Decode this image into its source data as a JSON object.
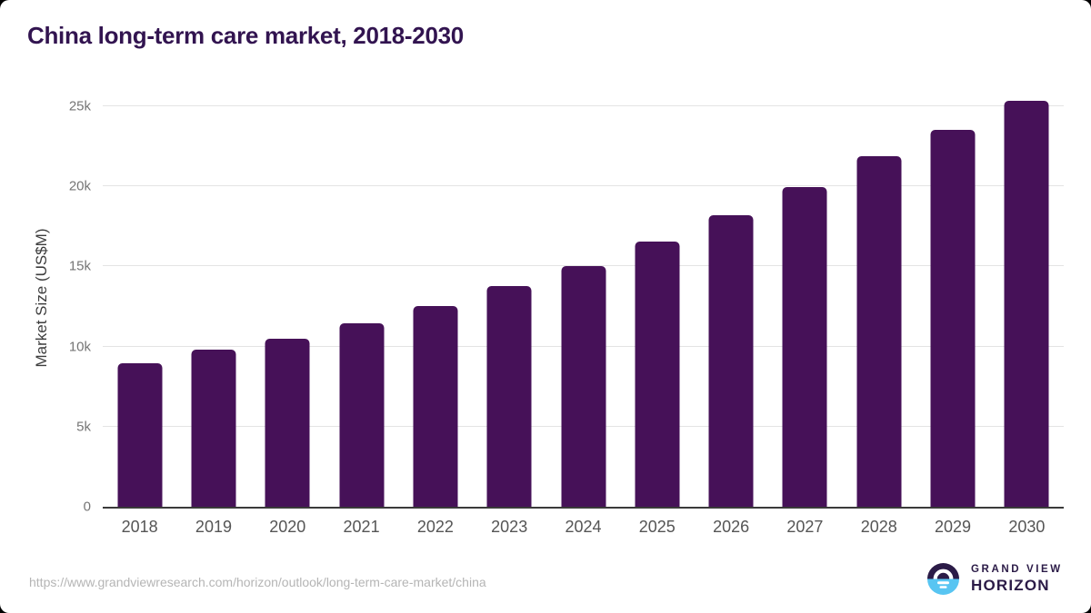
{
  "title": "China long-term care market, 2018-2030",
  "footer": {
    "source_url": "https://www.grandviewresearch.com/horizon/outlook/long-term-care-market/china",
    "logo": {
      "line1": "GRAND VIEW",
      "line2": "HORIZON"
    }
  },
  "colors": {
    "bar": "#461158",
    "title_text": "#321450",
    "axis_line": "#3a3a3a",
    "gridline": "#e4e4e4",
    "y_tick_text": "#757575",
    "x_tick_text": "#555555",
    "url_text": "#b5b5b5",
    "logo_dark": "#2b1b47",
    "logo_blue": "#58c5f2"
  },
  "chart_data": {
    "type": "bar",
    "title": "China long-term care market, 2018-2030",
    "xlabel": "",
    "ylabel": "Market Size (US$M)",
    "categories": [
      "2018",
      "2019",
      "2020",
      "2021",
      "2022",
      "2023",
      "2024",
      "2025",
      "2026",
      "2027",
      "2028",
      "2029",
      "2030"
    ],
    "values": [
      8950,
      9800,
      10500,
      11450,
      12550,
      13750,
      15050,
      16550,
      18200,
      19950,
      21900,
      23550,
      25350
    ],
    "ylim": [
      0,
      25000
    ],
    "yticks": [
      {
        "value": 0,
        "label": "0"
      },
      {
        "value": 5000,
        "label": "5k"
      },
      {
        "value": 10000,
        "label": "10k"
      },
      {
        "value": 15000,
        "label": "15k"
      },
      {
        "value": 20000,
        "label": "20k"
      },
      {
        "value": 25000,
        "label": "25k"
      }
    ],
    "grid": "horizontal",
    "legend": "none",
    "bar_color": "#461158"
  }
}
